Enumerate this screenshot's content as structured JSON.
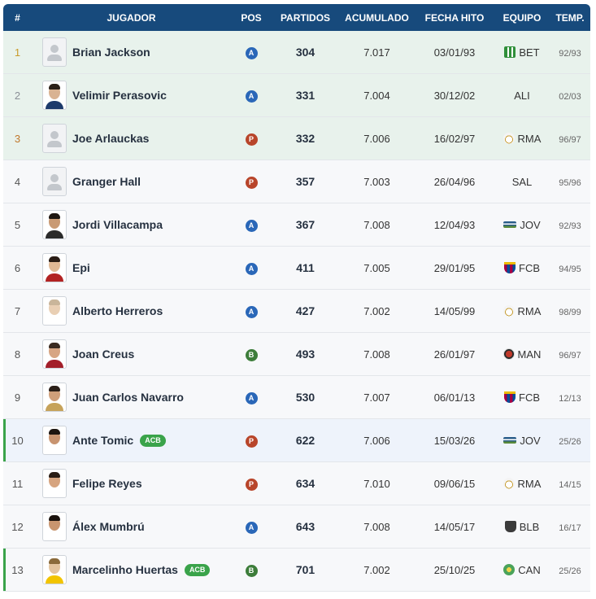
{
  "headers": {
    "rank": "#",
    "jugador": "JUGADOR",
    "pos": "POS",
    "partidos": "PARTIDOS",
    "acumulado": "ACUMULADO",
    "fecha": "FECHA HITO",
    "equipo": "EQUIPO",
    "temp": "TEMP."
  },
  "badge_label": "ACB",
  "colors": {
    "header_bg": "#174a7c",
    "pos_A": "#2a67b8",
    "pos_P": "#b8452a",
    "pos_B": "#3d7d3a",
    "active_marker": "#3aa34a"
  },
  "rows": [
    {
      "rank": "1",
      "name": "Brian Jackson",
      "pos": "A",
      "partidos": "304",
      "acumulado": "7.017",
      "fecha": "03/01/93",
      "team": "BET",
      "temp": "92/93",
      "avatar": "generic"
    },
    {
      "rank": "2",
      "name": "Velimir Perasovic",
      "pos": "A",
      "partidos": "331",
      "acumulado": "7.004",
      "fecha": "30/12/02",
      "team": "ALI",
      "temp": "02/03",
      "avatar": "photo"
    },
    {
      "rank": "3",
      "name": "Joe Arlauckas",
      "pos": "P",
      "partidos": "332",
      "acumulado": "7.006",
      "fecha": "16/02/97",
      "team": "RMA",
      "temp": "96/97",
      "avatar": "generic"
    },
    {
      "rank": "4",
      "name": "Granger Hall",
      "pos": "P",
      "partidos": "357",
      "acumulado": "7.003",
      "fecha": "26/04/96",
      "team": "SAL",
      "temp": "95/96",
      "avatar": "generic"
    },
    {
      "rank": "5",
      "name": "Jordi Villacampa",
      "pos": "A",
      "partidos": "367",
      "acumulado": "7.008",
      "fecha": "12/04/93",
      "team": "JOV",
      "temp": "92/93",
      "avatar": "photo"
    },
    {
      "rank": "6",
      "name": "Epi",
      "pos": "A",
      "partidos": "411",
      "acumulado": "7.005",
      "fecha": "29/01/95",
      "team": "FCB",
      "temp": "94/95",
      "avatar": "photo"
    },
    {
      "rank": "7",
      "name": "Alberto Herreros",
      "pos": "A",
      "partidos": "427",
      "acumulado": "7.002",
      "fecha": "14/05/99",
      "team": "RMA",
      "temp": "98/99",
      "avatar": "photo"
    },
    {
      "rank": "8",
      "name": "Joan Creus",
      "pos": "B",
      "partidos": "493",
      "acumulado": "7.008",
      "fecha": "26/01/97",
      "team": "MAN",
      "temp": "96/97",
      "avatar": "photo"
    },
    {
      "rank": "9",
      "name": "Juan Carlos Navarro",
      "pos": "A",
      "partidos": "530",
      "acumulado": "7.007",
      "fecha": "06/01/13",
      "team": "FCB",
      "temp": "12/13",
      "avatar": "photo"
    },
    {
      "rank": "10",
      "name": "Ante Tomic",
      "pos": "P",
      "partidos": "622",
      "acumulado": "7.006",
      "fecha": "15/03/26",
      "team": "JOV",
      "temp": "25/26",
      "avatar": "photo",
      "badge": true
    },
    {
      "rank": "11",
      "name": "Felipe Reyes",
      "pos": "P",
      "partidos": "634",
      "acumulado": "7.010",
      "fecha": "09/06/15",
      "team": "RMA",
      "temp": "14/15",
      "avatar": "photo"
    },
    {
      "rank": "12",
      "name": "Álex Mumbrú",
      "pos": "A",
      "partidos": "643",
      "acumulado": "7.008",
      "fecha": "14/05/17",
      "team": "BLB",
      "temp": "16/17",
      "avatar": "photo"
    },
    {
      "rank": "13",
      "name": "Marcelinho Huertas",
      "pos": "B",
      "partidos": "701",
      "acumulado": "7.002",
      "fecha": "25/10/25",
      "team": "CAN",
      "temp": "25/26",
      "avatar": "photo",
      "badge": true
    }
  ]
}
